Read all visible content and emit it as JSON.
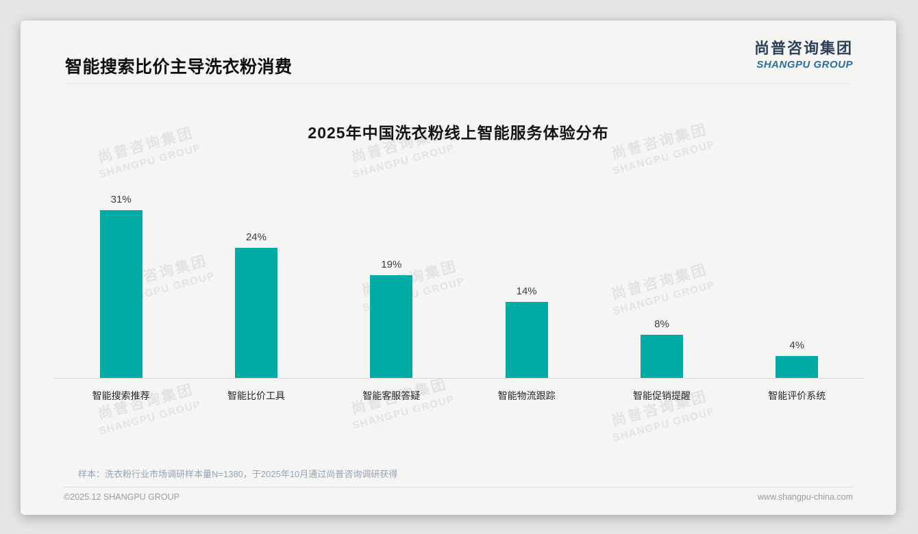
{
  "page": {
    "title": "智能搜索比价主导洗衣粉消费"
  },
  "logo": {
    "cn": "尚普咨询集团",
    "en": "SHANGPU GROUP"
  },
  "watermark": {
    "line1": "尚普咨询集团",
    "line2": "SHANGPU GROUP"
  },
  "chart_data": {
    "type": "bar",
    "title": "2025年中国洗衣粉线上智能服务体验分布",
    "categories": [
      "智能搜索推荐",
      "智能比价工具",
      "智能客服答疑",
      "智能物流跟踪",
      "智能促销提醒",
      "智能评价系统"
    ],
    "values": [
      31,
      24,
      19,
      14,
      8,
      4
    ],
    "value_labels": [
      "31%",
      "24%",
      "19%",
      "14%",
      "8%",
      "4%"
    ],
    "xlabel": "",
    "ylabel": "",
    "ylim": [
      0,
      33
    ],
    "grid": false,
    "legend": false,
    "bar_color": "#00ACA3",
    "axis_line_color": "#d8d8d8"
  },
  "footnote": "样本：洗衣粉行业市场调研样本量N=1380，于2025年10月通过尚普咨询调研获得",
  "footer": {
    "copyright": "©2025.12 SHANGPU GROUP",
    "website": "www.shangpu-china.com"
  }
}
